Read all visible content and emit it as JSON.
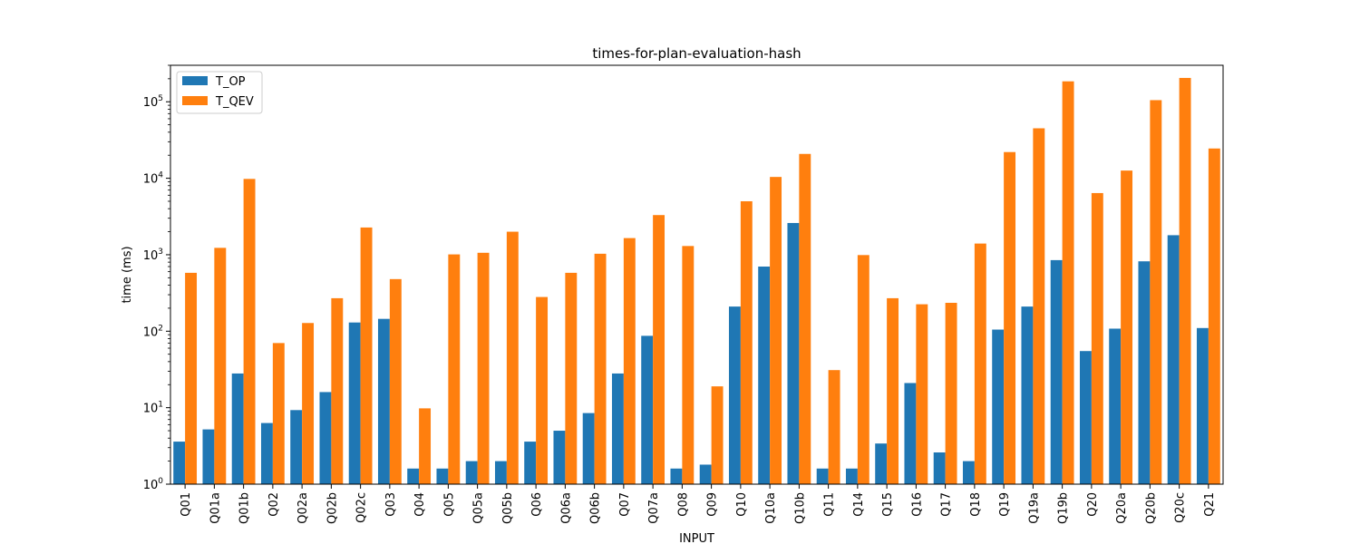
{
  "chart_data": {
    "type": "bar",
    "title": "times-for-plan-evaluation-hash",
    "xlabel": "INPUT",
    "ylabel": "time (ms)",
    "yscale": "log",
    "ylim": [
      1,
      300000
    ],
    "yticks": [
      1,
      10,
      100,
      1000,
      10000,
      100000
    ],
    "ytick_labels": [
      {
        "base": "10",
        "exp": "0"
      },
      {
        "base": "10",
        "exp": "1"
      },
      {
        "base": "10",
        "exp": "2"
      },
      {
        "base": "10",
        "exp": "3"
      },
      {
        "base": "10",
        "exp": "4"
      },
      {
        "base": "10",
        "exp": "5"
      }
    ],
    "grid": false,
    "legend_position": "top-left",
    "categories": [
      "Q01",
      "Q01a",
      "Q01b",
      "Q02",
      "Q02a",
      "Q02b",
      "Q02c",
      "Q03",
      "Q04",
      "Q05",
      "Q05a",
      "Q05b",
      "Q06",
      "Q06a",
      "Q06b",
      "Q07",
      "Q07a",
      "Q08",
      "Q09",
      "Q10",
      "Q10a",
      "Q10b",
      "Q11",
      "Q14",
      "Q15",
      "Q16",
      "Q17",
      "Q18",
      "Q19",
      "Q19a",
      "Q19b",
      "Q20",
      "Q20a",
      "Q20b",
      "Q20c",
      "Q21"
    ],
    "series": [
      {
        "name": "T_OP",
        "color": "#1f77b4",
        "values": [
          3.6,
          5.2,
          28,
          6.3,
          9.3,
          16,
          130,
          145,
          1.6,
          1.6,
          2.0,
          2.0,
          3.6,
          5.0,
          8.5,
          28,
          87,
          1.6,
          1.8,
          210,
          700,
          2600,
          1.6,
          1.6,
          3.4,
          21,
          2.6,
          2.0,
          105,
          210,
          850,
          55,
          108,
          820,
          1800,
          110
        ]
      },
      {
        "name": "T_QEV",
        "color": "#ff7f0e",
        "values": [
          580,
          1230,
          9800,
          70,
          128,
          270,
          2270,
          480,
          9.8,
          1010,
          1060,
          2000,
          280,
          580,
          1030,
          1650,
          3300,
          1300,
          19,
          5000,
          10400,
          20800,
          31,
          990,
          270,
          225,
          235,
          1400,
          22000,
          45000,
          185000,
          6400,
          12600,
          105000,
          205000,
          24500
        ]
      }
    ]
  }
}
